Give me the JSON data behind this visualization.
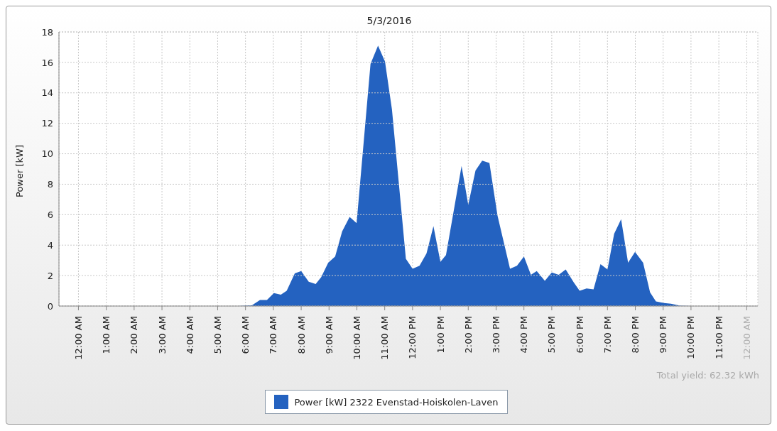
{
  "chart_data": {
    "type": "area",
    "title": "5/3/2016",
    "ylabel": "Power [kW]",
    "annotations": [
      "Total yield: 62.32 kWh"
    ],
    "xlim": [
      -0.7,
      24.4
    ],
    "xticks": [
      {
        "value": 0,
        "label": "12:00 AM"
      },
      {
        "value": 1,
        "label": "1:00 AM"
      },
      {
        "value": 2,
        "label": "2:00 AM"
      },
      {
        "value": 3,
        "label": "3:00 AM"
      },
      {
        "value": 4,
        "label": "4:00 AM"
      },
      {
        "value": 5,
        "label": "5:00 AM"
      },
      {
        "value": 6,
        "label": "6:00 AM"
      },
      {
        "value": 7,
        "label": "7:00 AM"
      },
      {
        "value": 8,
        "label": "8:00 AM"
      },
      {
        "value": 9,
        "label": "9:00 AM"
      },
      {
        "value": 10,
        "label": "10:00 AM"
      },
      {
        "value": 11,
        "label": "11:00 AM"
      },
      {
        "value": 12,
        "label": "12:00 PM"
      },
      {
        "value": 13,
        "label": "1:00 PM"
      },
      {
        "value": 14,
        "label": "2:00 PM"
      },
      {
        "value": 15,
        "label": "3:00 PM"
      },
      {
        "value": 16,
        "label": "4:00 PM"
      },
      {
        "value": 17,
        "label": "5:00 PM"
      },
      {
        "value": 18,
        "label": "6:00 PM"
      },
      {
        "value": 19,
        "label": "7:00 PM"
      },
      {
        "value": 20,
        "label": "8:00 PM"
      },
      {
        "value": 21,
        "label": "9:00 PM"
      },
      {
        "value": 22,
        "label": "10:00 PM"
      },
      {
        "value": 23,
        "label": "11:00 PM"
      },
      {
        "value": 24,
        "label": "12:00 AM"
      }
    ],
    "ylim": [
      0,
      18
    ],
    "yticks": [
      0,
      2,
      4,
      6,
      8,
      10,
      12,
      14,
      16,
      18
    ],
    "grid": true,
    "legend": "bottom",
    "series": [
      {
        "name": "Power [kW] 2322 Evenstad-Hoiskolen-Laven",
        "color": "#2462c0",
        "x": [
          5.73,
          6.23,
          6.52,
          6.77,
          7.02,
          7.27,
          7.48,
          7.77,
          8.0,
          8.27,
          8.52,
          8.72,
          8.97,
          9.22,
          9.47,
          9.74,
          9.99,
          10.49,
          10.76,
          11.01,
          11.26,
          11.76,
          12.0,
          12.25,
          12.5,
          12.75,
          13.0,
          13.2,
          13.76,
          14.0,
          14.26,
          14.5,
          14.76,
          15.05,
          15.5,
          15.75,
          16.0,
          16.25,
          16.46,
          16.75,
          17.0,
          17.25,
          17.5,
          17.79,
          18.0,
          18.25,
          18.5,
          18.75,
          19.0,
          19.24,
          19.49,
          19.74,
          19.99,
          20.28,
          20.53,
          20.74,
          21.03,
          21.28,
          21.61,
          22.01
        ],
        "values": [
          0,
          0.05,
          0.4,
          0.4,
          0.85,
          0.75,
          1.0,
          2.15,
          2.3,
          1.6,
          1.45,
          1.9,
          2.85,
          3.25,
          4.9,
          5.85,
          5.45,
          15.9,
          17.1,
          16.05,
          12.9,
          3.1,
          2.45,
          2.65,
          3.45,
          5.25,
          2.9,
          3.35,
          9.2,
          6.65,
          8.9,
          9.55,
          9.4,
          5.95,
          2.45,
          2.65,
          3.25,
          2.05,
          2.3,
          1.65,
          2.2,
          2.05,
          2.4,
          1.55,
          1.0,
          1.15,
          1.1,
          2.75,
          2.4,
          4.75,
          5.7,
          2.85,
          3.55,
          2.85,
          0.9,
          0.3,
          0.2,
          0.15,
          0.02,
          0
        ]
      }
    ]
  }
}
